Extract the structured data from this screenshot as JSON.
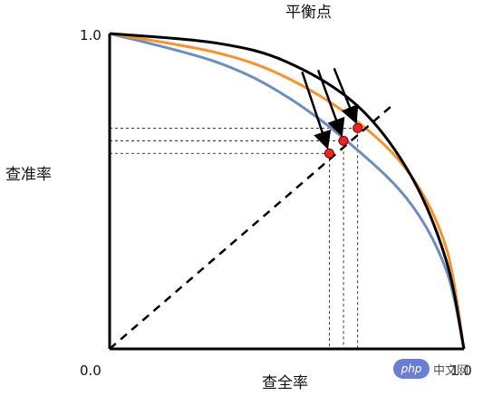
{
  "chart_data": {
    "type": "line",
    "title": "平衡点",
    "xlabel": "查全率",
    "ylabel": "查准率",
    "xlim": [
      0,
      1
    ],
    "ylim": [
      0,
      1
    ],
    "x_tick_labels": [
      "0.0",
      "1.0"
    ],
    "y_tick_labels": [
      "0.0",
      "1.0"
    ],
    "grid": false,
    "legend": "none",
    "series": [
      {
        "color": "#000000",
        "points": [
          [
            0,
            1
          ],
          [
            0.3,
            0.97
          ],
          [
            0.5,
            0.91
          ],
          [
            0.7,
            0.77
          ],
          [
            0.85,
            0.55
          ],
          [
            0.95,
            0.28
          ],
          [
            1,
            0
          ]
        ]
      },
      {
        "color": "#f7922f",
        "points": [
          [
            0,
            1
          ],
          [
            0.3,
            0.94
          ],
          [
            0.5,
            0.86
          ],
          [
            0.7,
            0.72
          ],
          [
            0.85,
            0.55
          ],
          [
            0.95,
            0.32
          ],
          [
            1,
            0
          ]
        ]
      },
      {
        "color": "#6c8ebf",
        "points": [
          [
            0,
            1
          ],
          [
            0.3,
            0.91
          ],
          [
            0.5,
            0.8
          ],
          [
            0.7,
            0.63
          ],
          [
            0.85,
            0.46
          ],
          [
            0.95,
            0.25
          ],
          [
            1,
            0
          ]
        ]
      }
    ],
    "diagonal": {
      "from": [
        0,
        0
      ],
      "to": [
        1,
        1
      ],
      "style": "dashed"
    },
    "break_even_points": [
      {
        "x": 0.62,
        "y": 0.62,
        "color": "#e8262a"
      },
      {
        "x": 0.66,
        "y": 0.66,
        "color": "#e8262a"
      },
      {
        "x": 0.7,
        "y": 0.7,
        "color": "#e8262a"
      }
    ]
  },
  "watermark": {
    "logo": "php",
    "text": "中文网"
  }
}
